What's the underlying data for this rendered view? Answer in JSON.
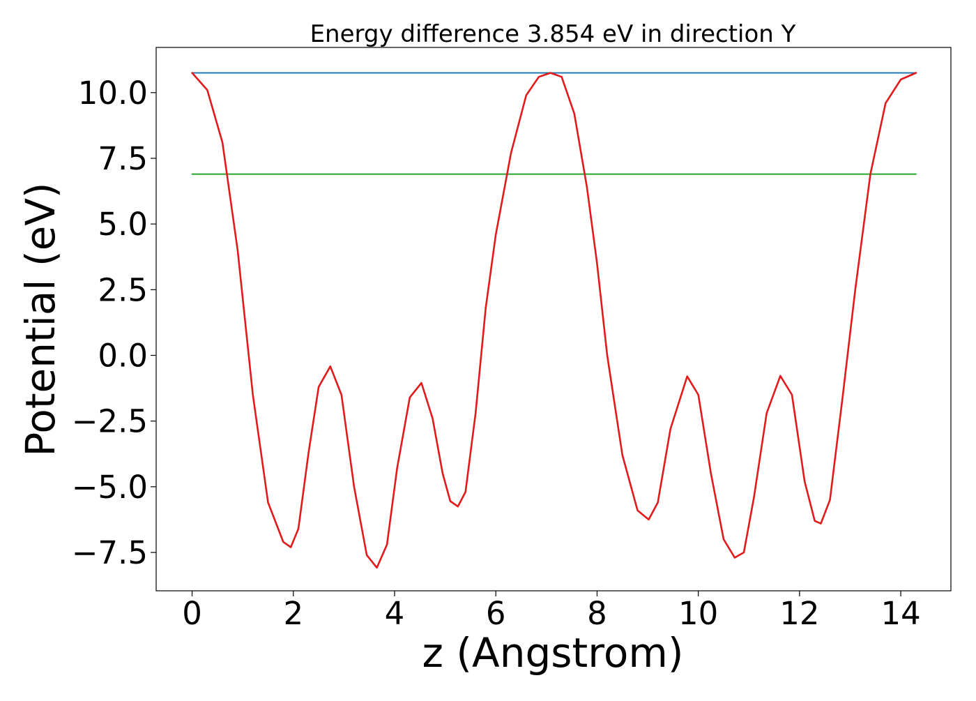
{
  "chart_data": {
    "type": "line",
    "title": "Energy difference 3.854 eV in direction Y",
    "xlabel": "z (Angstrom)",
    "ylabel": "Potential (eV)",
    "xlim": [
      -0.71,
      14.99
    ],
    "ylim": [
      -8.96,
      11.72
    ],
    "x_ticks": [
      0,
      2,
      4,
      6,
      8,
      10,
      12,
      14
    ],
    "x_tick_labels": [
      "0",
      "2",
      "4",
      "6",
      "8",
      "10",
      "12",
      "14"
    ],
    "y_ticks": [
      -7.5,
      -5.0,
      -2.5,
      0.0,
      2.5,
      5.0,
      7.5,
      10.0
    ],
    "y_tick_labels": [
      "−7.5",
      "−5.0",
      "−2.5",
      "0.0",
      "2.5",
      "5.0",
      "7.5",
      "10.0"
    ],
    "grid": false,
    "legend": "none",
    "series": [
      {
        "color": "#e31a1c",
        "x": [
          0,
          0.3,
          0.6,
          0.9,
          1.2,
          1.5,
          1.8,
          1.95,
          2.1,
          2.3,
          2.5,
          2.73,
          2.95,
          3.2,
          3.45,
          3.65,
          3.85,
          4.05,
          4.3,
          4.53,
          4.75,
          4.95,
          5.1,
          5.25,
          5.4,
          5.6,
          5.8,
          6.0,
          6.3,
          6.6,
          6.85,
          7.08,
          7.3,
          7.55,
          7.8,
          8.0,
          8.2,
          8.5,
          8.8,
          9.02,
          9.2,
          9.45,
          9.78,
          10.0,
          10.25,
          10.5,
          10.72,
          10.9,
          11.1,
          11.35,
          11.62,
          11.85,
          12.1,
          12.3,
          12.42,
          12.6,
          12.85,
          13.1,
          13.4,
          13.7,
          14.0,
          14.3
        ],
        "y": [
          10.75,
          10.1,
          8.1,
          4.0,
          -1.5,
          -5.6,
          -7.1,
          -7.3,
          -6.6,
          -3.7,
          -1.2,
          -0.42,
          -1.5,
          -5.0,
          -7.6,
          -8.08,
          -7.2,
          -4.3,
          -1.6,
          -1.05,
          -2.4,
          -4.5,
          -5.55,
          -5.75,
          -5.2,
          -2.2,
          1.8,
          4.6,
          7.7,
          9.9,
          10.6,
          10.75,
          10.6,
          9.2,
          6.4,
          3.5,
          0.0,
          -3.8,
          -5.9,
          -6.25,
          -5.6,
          -2.8,
          -0.8,
          -1.5,
          -4.5,
          -7.0,
          -7.7,
          -7.5,
          -5.4,
          -2.2,
          -0.78,
          -1.5,
          -4.8,
          -6.3,
          -6.4,
          -5.5,
          -1.6,
          2.5,
          6.9,
          9.6,
          10.5,
          10.75
        ]
      },
      {
        "color": "#1f77b4",
        "x": [
          0,
          14.3
        ],
        "y": [
          10.75,
          10.75
        ]
      },
      {
        "color": "#2ca02c",
        "x": [
          0,
          14.3
        ],
        "y": [
          6.9,
          6.9
        ]
      }
    ]
  }
}
